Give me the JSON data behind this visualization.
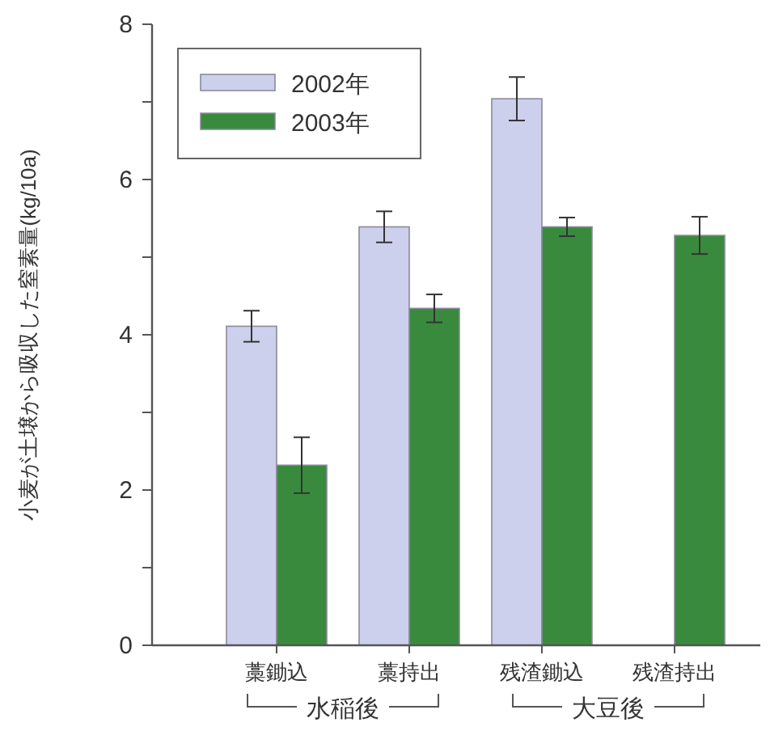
{
  "chart_data": {
    "type": "bar",
    "ylabel": "小麦が土壌から吸収した窒素量(kg/10a)",
    "categories": [
      "藁鋤込",
      "藁持出",
      "残渣鋤込",
      "残渣持出"
    ],
    "series": [
      {
        "name": "2002年",
        "color": "#cdd0ec",
        "values": [
          4.11,
          5.39,
          7.04,
          null
        ],
        "errors": [
          0.2,
          0.2,
          0.28,
          null
        ]
      },
      {
        "name": "2003年",
        "color": "#3a8a3e",
        "values": [
          2.32,
          4.34,
          5.39,
          5.28
        ],
        "errors": [
          0.36,
          0.18,
          0.12,
          0.24
        ]
      }
    ],
    "ylim": [
      0,
      8
    ],
    "yticks": [
      0,
      {
        "value": 1,
        "label": null
      },
      2,
      {
        "value": 3,
        "label": null
      },
      4,
      {
        "value": 5,
        "label": null
      },
      6,
      {
        "value": 7,
        "label": null
      },
      8
    ],
    "legend": "top left",
    "annotations": [
      "水稲後",
      "大豆後"
    ]
  }
}
